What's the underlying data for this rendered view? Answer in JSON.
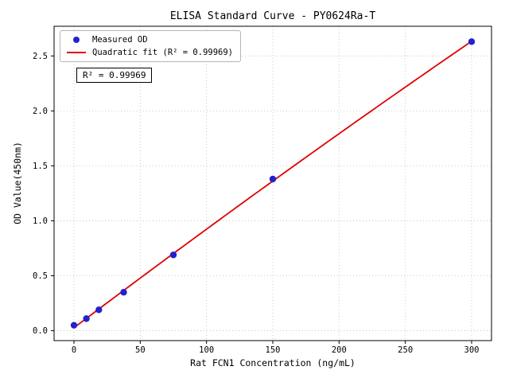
{
  "chart_data": {
    "type": "scatter",
    "title": "ELISA Standard Curve - PY0624Ra-T",
    "xlabel": "Rat FCN1 Concentration (ng/mL)",
    "ylabel": "OD Value(450nm)",
    "x_ticks": [
      0,
      50,
      100,
      150,
      200,
      250,
      300
    ],
    "y_ticks": [
      0.0,
      0.5,
      1.0,
      1.5,
      2.0,
      2.5
    ],
    "xlim": [
      -15,
      315
    ],
    "ylim": [
      -0.09,
      2.77
    ],
    "grid": true,
    "annotation": "R² = 0.99969",
    "legend": {
      "position": "upper-left",
      "entries": [
        {
          "label": "Measured OD",
          "marker": "dot",
          "color": "#2222cc"
        },
        {
          "label": "Quadratic fit (R² = 0.99969)",
          "marker": "line",
          "color": "#e00000"
        }
      ]
    },
    "colors": {
      "points": "#2222cc",
      "fit_line": "#e00000",
      "grid": "#bfbfbf",
      "frame": "#000000"
    },
    "series": [
      {
        "name": "Measured OD",
        "type": "scatter",
        "points": [
          [
            0,
            0.05
          ],
          [
            9.375,
            0.11
          ],
          [
            18.75,
            0.19
          ],
          [
            37.5,
            0.35
          ],
          [
            75,
            0.69
          ],
          [
            150,
            1.38
          ],
          [
            300,
            2.63
          ]
        ]
      },
      {
        "name": "Quadratic fit",
        "type": "quadratic-fit",
        "r_squared": 0.99969
      }
    ]
  }
}
